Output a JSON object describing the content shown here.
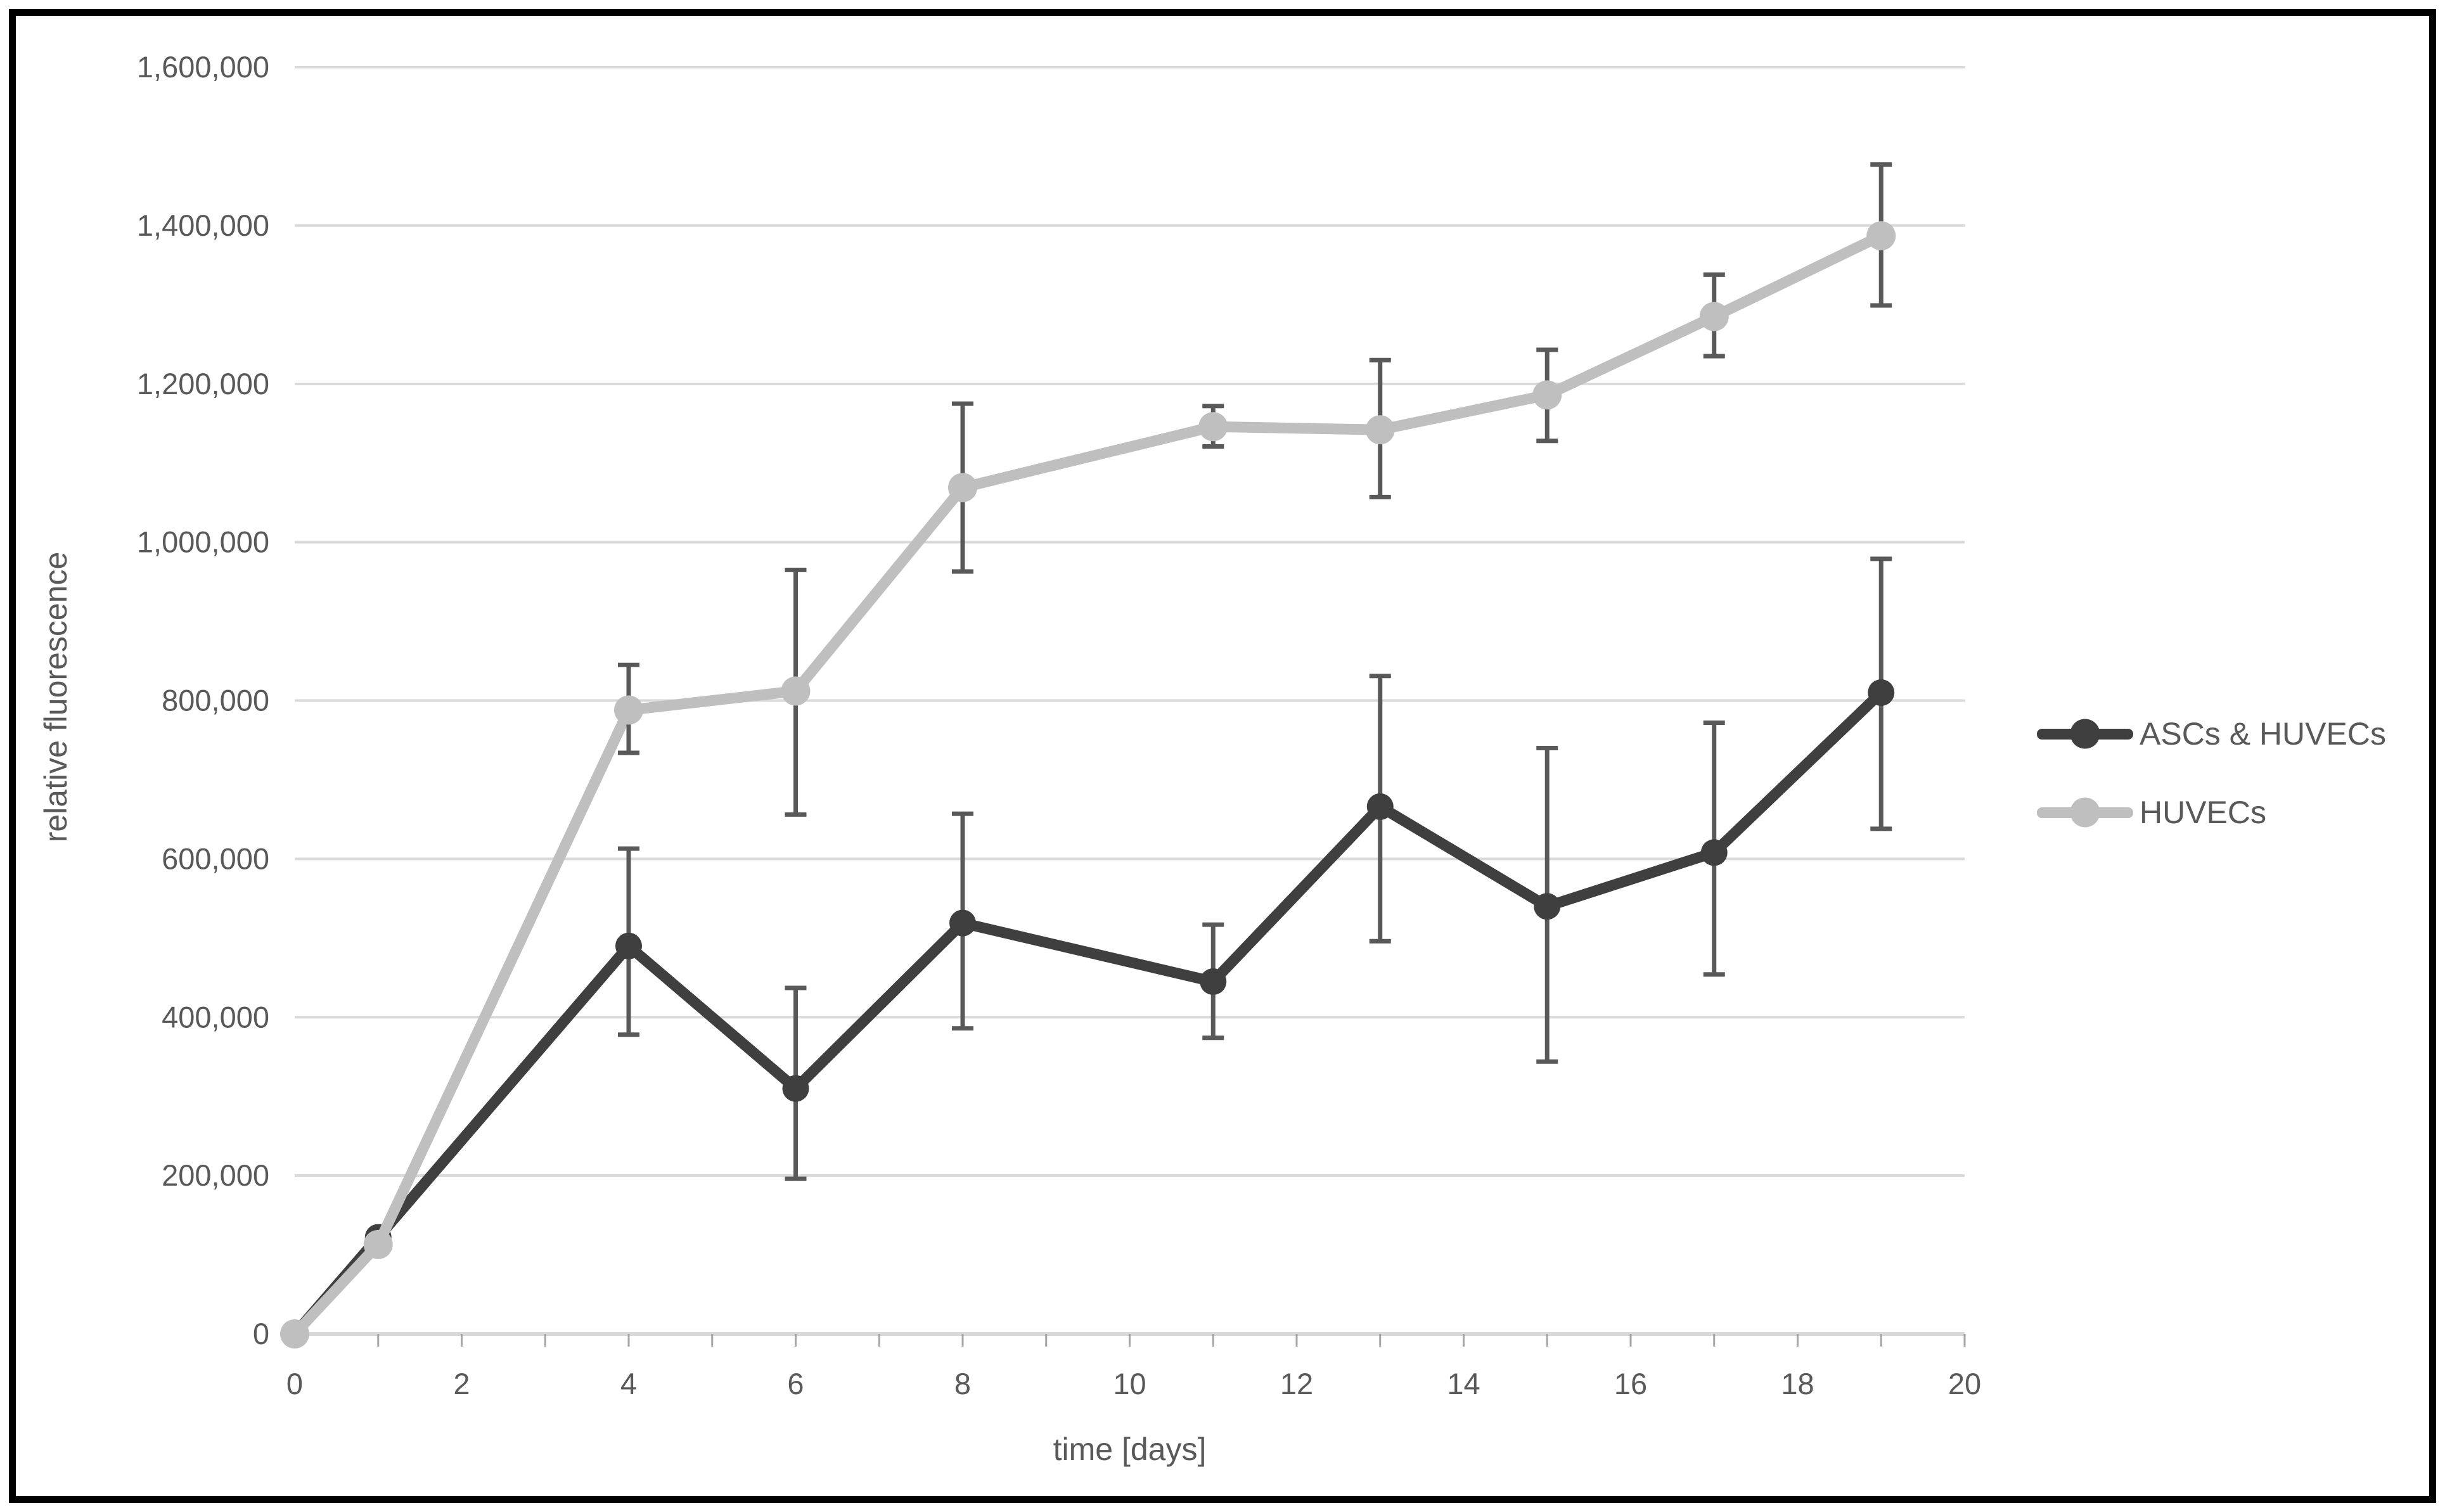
{
  "figure": {
    "background": "#ffffff",
    "border_color": "#000000"
  },
  "chart_data": {
    "type": "line",
    "title": "",
    "xlabel": "time [days]",
    "ylabel": "relative fluorescence",
    "xlim": [
      0,
      20
    ],
    "ylim": [
      0,
      1600000
    ],
    "x_major_ticks": [
      0,
      2,
      4,
      6,
      8,
      10,
      12,
      14,
      16,
      18,
      20
    ],
    "x_minor_tick_step": 1,
    "y_ticks": [
      0,
      200000,
      400000,
      600000,
      800000,
      1000000,
      1200000,
      1400000,
      1600000
    ],
    "y_tick_format": "comma",
    "grid": true,
    "legend_position": "right",
    "x": [
      0,
      1,
      4,
      6,
      8,
      11,
      13,
      15,
      17,
      19
    ],
    "series": [
      {
        "name": "ASCs & HUVECs",
        "color": "#3f3f3f",
        "values": [
          0,
          122000,
          490000,
          310000,
          519000,
          445000,
          666000,
          540000,
          608000,
          810000
        ],
        "err_low": [
          null,
          null,
          378000,
          196000,
          386000,
          374000,
          496000,
          344000,
          454000,
          638000
        ],
        "err_high": [
          null,
          null,
          613000,
          437000,
          657000,
          517000,
          831000,
          740000,
          772000,
          979000
        ]
      },
      {
        "name": "HUVECs",
        "color": "#bfbfbf",
        "values": [
          0,
          113000,
          788000,
          812000,
          1069000,
          1146000,
          1142000,
          1186000,
          1285000,
          1387000
        ],
        "err_low": [
          null,
          null,
          734000,
          656000,
          963000,
          1121000,
          1057000,
          1128000,
          1235000,
          1299000
        ],
        "err_high": [
          null,
          null,
          845000,
          965000,
          1175000,
          1172000,
          1230000,
          1243000,
          1338000,
          1477000
        ]
      }
    ],
    "colors": {
      "gridline": "#d9d9d9",
      "axis_line": "#d9d9d9",
      "tick_mark": "#a6a6a6",
      "error_bar": "#595959",
      "tick_text": "#595959"
    }
  },
  "legend": {
    "items": [
      {
        "label": "ASCs & HUVECs"
      },
      {
        "label": "HUVECs"
      }
    ]
  }
}
